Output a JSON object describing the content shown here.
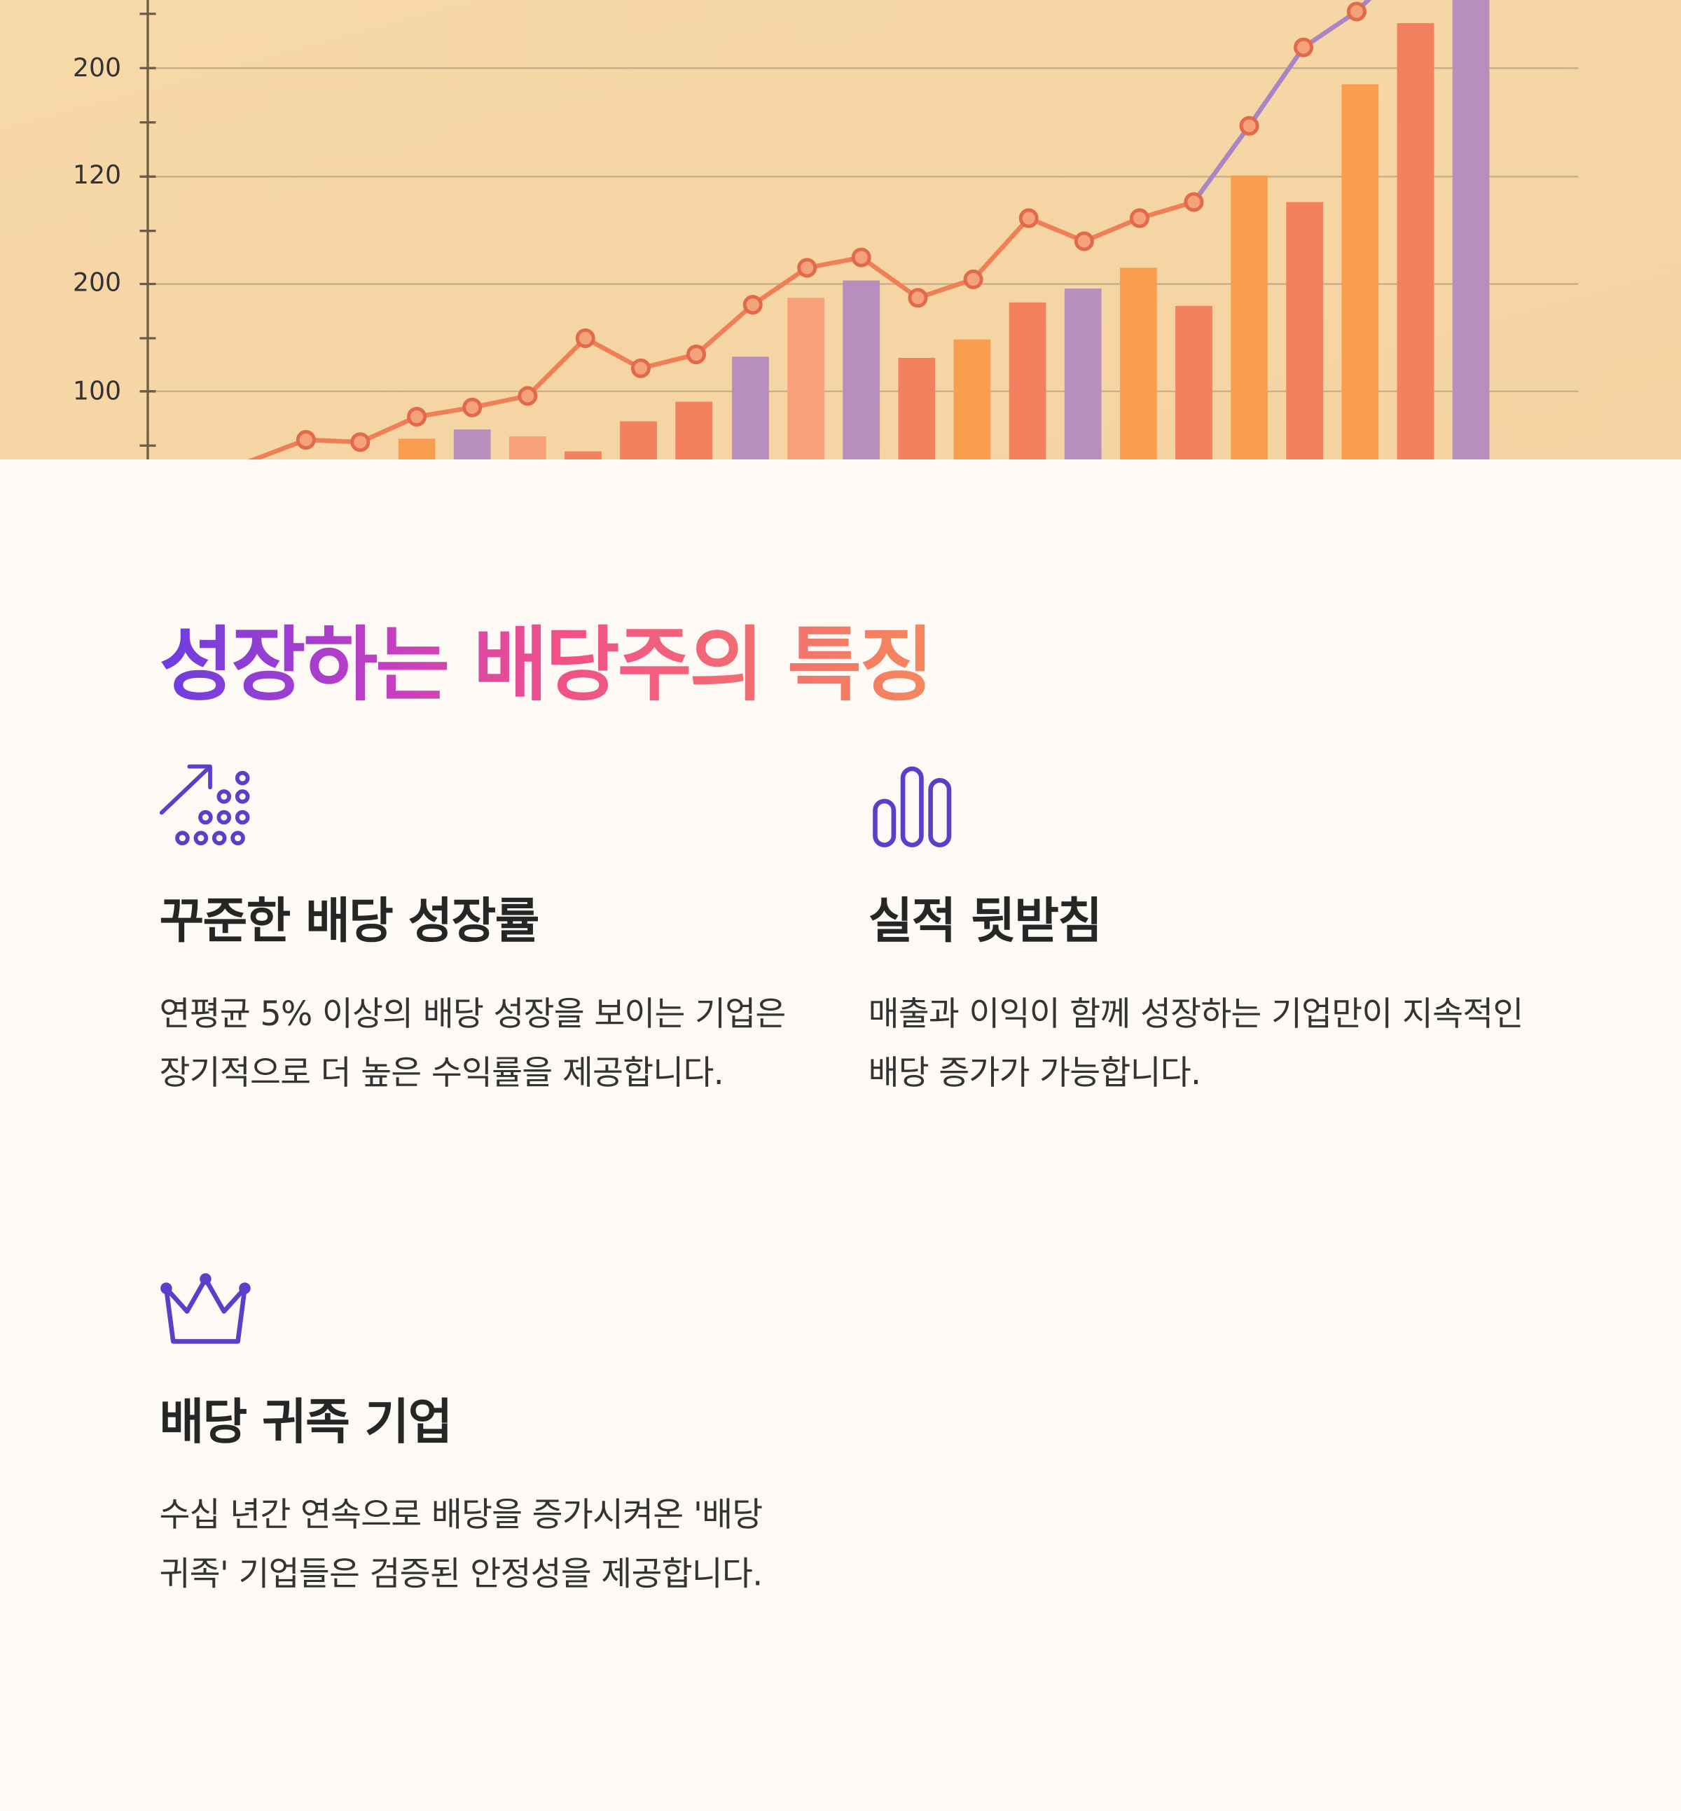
{
  "hero_image": {
    "axis_labels": [
      "200",
      "120",
      "200",
      "100"
    ]
  },
  "title": "성장하는 배당주의 특징",
  "features": [
    {
      "title": "꾸준한 배당 성장률",
      "description": "연평균 5% 이상의 배당 성장을 보이는 기업은 장기적으로 더 높은 수익률을 제공합니다."
    },
    {
      "title": "실적 뒷받침",
      "description": "매출과 이익이 함께 성장하는 기업만이 지속적인 배당 증가가 가능합니다."
    },
    {
      "title": "배당 귀족 기업",
      "description": "수십 년간 연속으로 배당을 증가시켜온 '배당 귀족' 기업들은 검증된 안정성을 제공합니다."
    }
  ]
}
